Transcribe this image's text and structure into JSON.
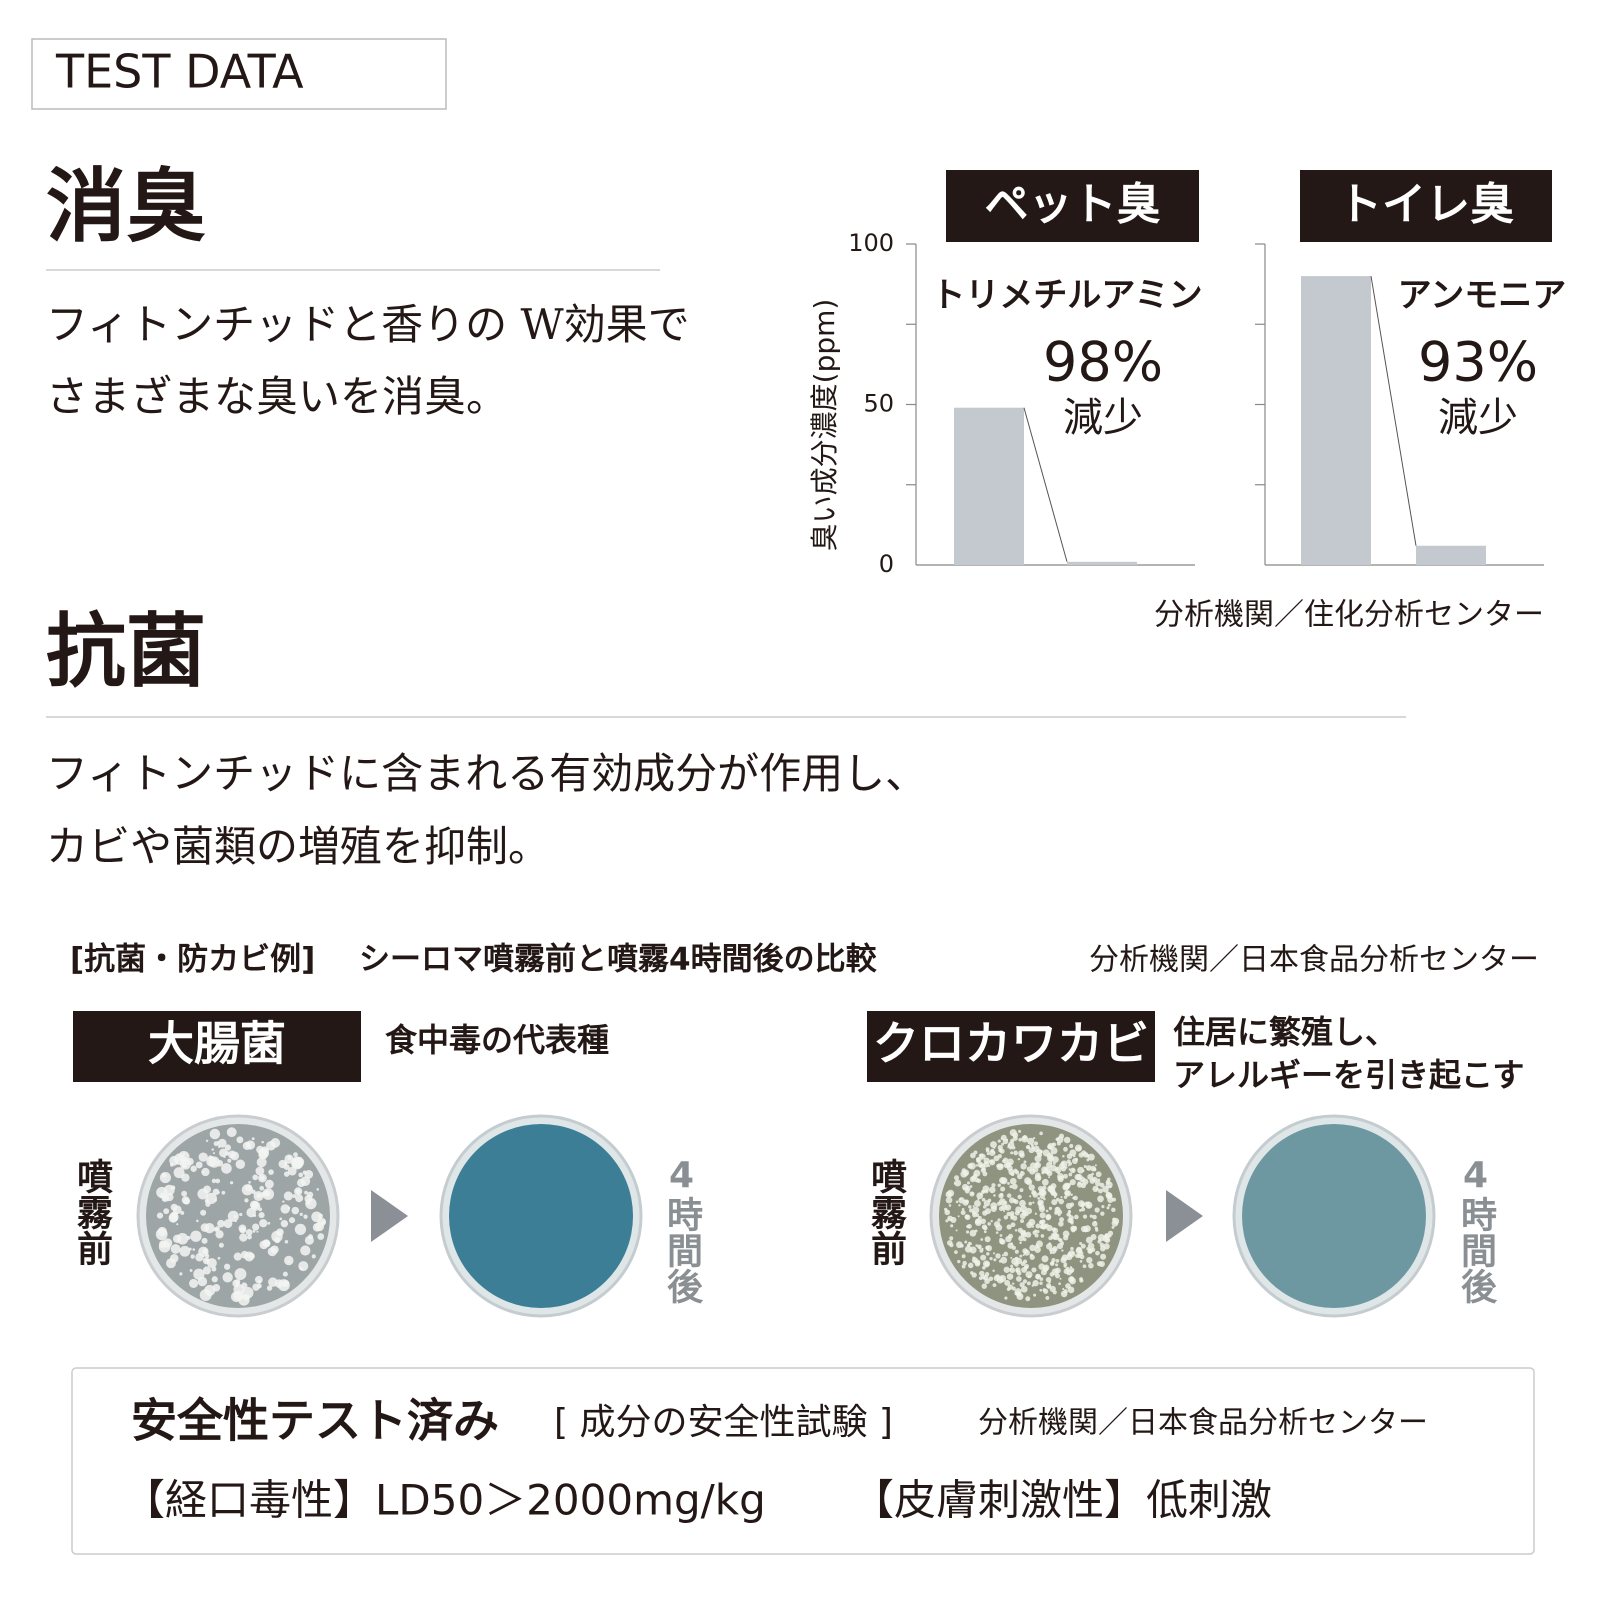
{
  "header": {
    "badge": "TEST DATA"
  },
  "deodorize": {
    "title": "消臭",
    "text": [
      "フィトンチッドと香りの W効果で",
      "さまざまな臭いを消臭。"
    ],
    "source": "分析機関／住化分析センター"
  },
  "chart_data": [
    {
      "type": "bar",
      "title": "ペット臭",
      "subtitle": "トリメチルアミン",
      "annotation": [
        "98%",
        "減少"
      ],
      "y_label": "臭い成分濃度(ppm)",
      "categories": [
        null,
        null
      ],
      "values": [
        49,
        1
      ],
      "color": "#c3c9cf",
      "ylim": [
        0,
        100
      ],
      "yticks": [
        0,
        50,
        100
      ],
      "ytick_marks": [
        25,
        50,
        75,
        100
      ]
    },
    {
      "type": "bar",
      "title": "トイレ臭",
      "subtitle": "アンモニア",
      "annotation": [
        "93%",
        "減少"
      ],
      "categories": [
        null,
        null
      ],
      "values": [
        90,
        6
      ],
      "color": "#c3c9cf",
      "ylim": [
        0,
        100
      ],
      "ytick_marks": [
        25,
        50,
        75,
        100
      ]
    }
  ],
  "antibacterial": {
    "title": "抗菌",
    "text": [
      "フィトンチッドに含まれる有効成分が作用し、",
      "カビや菌類の増殖を抑制。"
    ],
    "example": {
      "label": "[抗菌・防カビ例]",
      "caption": "シーロマ噴霧前と噴霧4時間後の比較",
      "source": "分析機関／日本食品分析センター"
    },
    "cases": [
      {
        "name": "大腸菌",
        "desc": [
          "食中毒の代表種"
        ],
        "before": "噴霧前",
        "after": "4時間後"
      },
      {
        "name": "クロカワカビ",
        "desc": [
          "住居に繁殖し、",
          "アレルギーを引き起こす"
        ],
        "before": "噴霧前",
        "after": "4時間後"
      }
    ]
  },
  "safety": {
    "title": "安全性テスト済み",
    "subtitle": "[ 成分の安全性試験 ]",
    "source": "分析機関／日本食品分析センター",
    "items": [
      "【経口毒性】LD50＞2000mg/kg",
      "【皮膚刺激性】低刺激"
    ]
  }
}
